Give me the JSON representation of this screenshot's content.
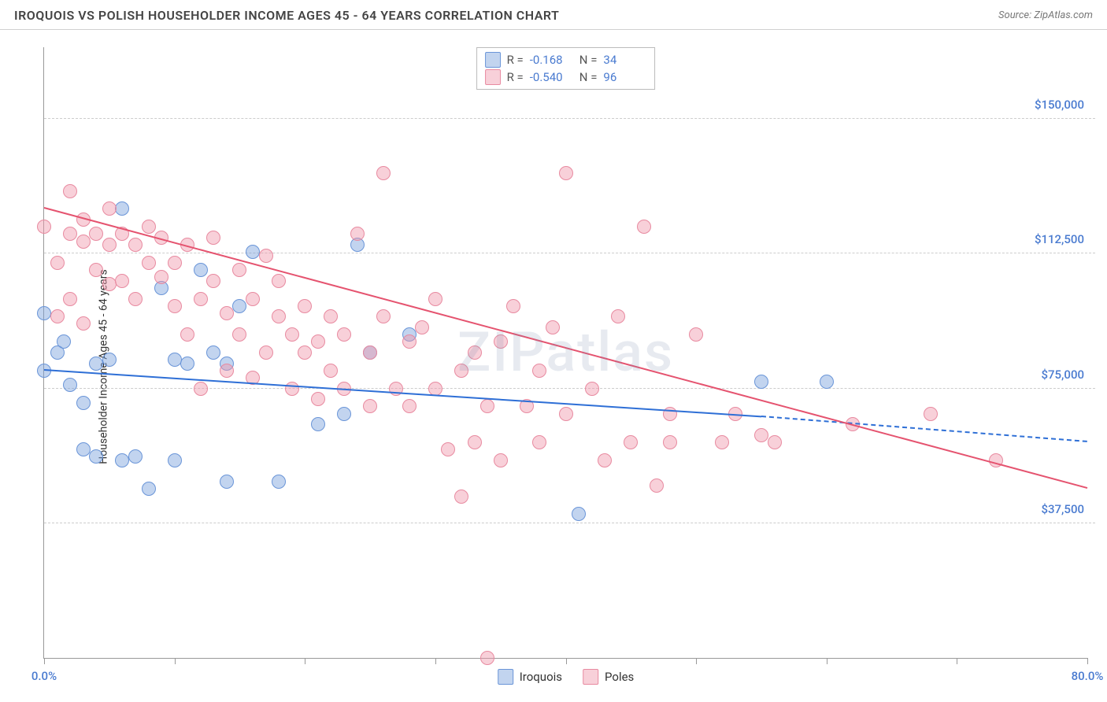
{
  "header": {
    "title": "IROQUOIS VS POLISH HOUSEHOLDER INCOME AGES 45 - 64 YEARS CORRELATION CHART",
    "source": "Source: ZipAtlas.com"
  },
  "watermark": "ZIPatlas",
  "chart": {
    "type": "scatter",
    "ylabel": "Householder Income Ages 45 - 64 years",
    "xlim": [
      0,
      80
    ],
    "ylim": [
      0,
      170000
    ],
    "yticks": [
      {
        "v": 37500,
        "label": "$37,500"
      },
      {
        "v": 75000,
        "label": "$75,000"
      },
      {
        "v": 112500,
        "label": "$112,500"
      },
      {
        "v": 150000,
        "label": "$150,000"
      }
    ],
    "xticks": [
      0,
      10,
      20,
      30,
      40,
      50,
      60,
      70,
      80
    ],
    "xaxis_labels": [
      {
        "v": 0,
        "label": "0.0%"
      },
      {
        "v": 80,
        "label": "80.0%"
      }
    ],
    "grid_color": "#cccccc",
    "axis_color": "#999999",
    "background_color": "#ffffff",
    "label_color": "#4a7bd0",
    "point_radius": 9,
    "point_opacity": 0.55,
    "series": [
      {
        "name": "Iroquois",
        "color_fill": "rgba(120,160,220,0.45)",
        "color_stroke": "#6a95d8",
        "trend_color": "#2e6fd6",
        "r": "-0.168",
        "n": "34",
        "trend": {
          "x1": 0,
          "y1": 80000,
          "x2": 55,
          "y2": 67000,
          "dash_to_x": 80,
          "dash_to_y": 60000
        },
        "points": [
          [
            0,
            96000
          ],
          [
            0,
            80000
          ],
          [
            1,
            85000
          ],
          [
            1.5,
            88000
          ],
          [
            2,
            76000
          ],
          [
            3,
            58000
          ],
          [
            3,
            71000
          ],
          [
            4,
            82000
          ],
          [
            4,
            56000
          ],
          [
            5,
            83000
          ],
          [
            6,
            125000
          ],
          [
            6,
            55000
          ],
          [
            7,
            56000
          ],
          [
            8,
            47000
          ],
          [
            9,
            103000
          ],
          [
            10,
            83000
          ],
          [
            10,
            55000
          ],
          [
            11,
            82000
          ],
          [
            12,
            108000
          ],
          [
            13,
            85000
          ],
          [
            14,
            49000
          ],
          [
            14,
            82000
          ],
          [
            15,
            98000
          ],
          [
            16,
            113000
          ],
          [
            18,
            49000
          ],
          [
            21,
            65000
          ],
          [
            23,
            68000
          ],
          [
            24,
            115000
          ],
          [
            25,
            85000
          ],
          [
            28,
            90000
          ],
          [
            41,
            40000
          ],
          [
            55,
            77000
          ],
          [
            60,
            77000
          ]
        ]
      },
      {
        "name": "Poles",
        "color_fill": "rgba(240,150,170,0.45)",
        "color_stroke": "#e88aa0",
        "trend_color": "#e5536f",
        "r": "-0.540",
        "n": "96",
        "trend": {
          "x1": 0,
          "y1": 125000,
          "x2": 80,
          "y2": 47000
        },
        "points": [
          [
            0,
            120000
          ],
          [
            1,
            110000
          ],
          [
            1,
            95000
          ],
          [
            2,
            118000
          ],
          [
            2,
            100000
          ],
          [
            2,
            130000
          ],
          [
            3,
            116000
          ],
          [
            3,
            122000
          ],
          [
            3,
            93000
          ],
          [
            4,
            108000
          ],
          [
            4,
            118000
          ],
          [
            5,
            115000
          ],
          [
            5,
            104000
          ],
          [
            5,
            125000
          ],
          [
            6,
            118000
          ],
          [
            6,
            105000
          ],
          [
            7,
            115000
          ],
          [
            7,
            100000
          ],
          [
            8,
            120000
          ],
          [
            8,
            110000
          ],
          [
            9,
            106000
          ],
          [
            9,
            117000
          ],
          [
            10,
            110000
          ],
          [
            10,
            98000
          ],
          [
            11,
            115000
          ],
          [
            11,
            90000
          ],
          [
            12,
            100000
          ],
          [
            12,
            75000
          ],
          [
            13,
            105000
          ],
          [
            13,
            117000
          ],
          [
            14,
            96000
          ],
          [
            14,
            80000
          ],
          [
            15,
            108000
          ],
          [
            15,
            90000
          ],
          [
            16,
            100000
          ],
          [
            16,
            78000
          ],
          [
            17,
            112000
          ],
          [
            17,
            85000
          ],
          [
            18,
            95000
          ],
          [
            18,
            105000
          ],
          [
            19,
            90000
          ],
          [
            19,
            75000
          ],
          [
            20,
            98000
          ],
          [
            20,
            85000
          ],
          [
            21,
            72000
          ],
          [
            21,
            88000
          ],
          [
            22,
            95000
          ],
          [
            22,
            80000
          ],
          [
            23,
            75000
          ],
          [
            23,
            90000
          ],
          [
            24,
            118000
          ],
          [
            25,
            70000
          ],
          [
            25,
            85000
          ],
          [
            26,
            95000
          ],
          [
            26,
            135000
          ],
          [
            27,
            75000
          ],
          [
            28,
            88000
          ],
          [
            28,
            70000
          ],
          [
            29,
            92000
          ],
          [
            30,
            75000
          ],
          [
            30,
            100000
          ],
          [
            31,
            58000
          ],
          [
            32,
            80000
          ],
          [
            32,
            45000
          ],
          [
            33,
            85000
          ],
          [
            33,
            60000
          ],
          [
            34,
            70000
          ],
          [
            34,
            0
          ],
          [
            35,
            55000
          ],
          [
            35,
            88000
          ],
          [
            36,
            98000
          ],
          [
            37,
            70000
          ],
          [
            38,
            60000
          ],
          [
            38,
            80000
          ],
          [
            39,
            92000
          ],
          [
            40,
            135000
          ],
          [
            40,
            68000
          ],
          [
            42,
            75000
          ],
          [
            43,
            55000
          ],
          [
            44,
            95000
          ],
          [
            45,
            60000
          ],
          [
            46,
            120000
          ],
          [
            47,
            48000
          ],
          [
            48,
            60000
          ],
          [
            48,
            68000
          ],
          [
            50,
            90000
          ],
          [
            52,
            60000
          ],
          [
            53,
            68000
          ],
          [
            55,
            62000
          ],
          [
            56,
            60000
          ],
          [
            62,
            65000
          ],
          [
            68,
            68000
          ],
          [
            73,
            55000
          ]
        ]
      }
    ],
    "legend": {
      "items": [
        "Iroquois",
        "Poles"
      ]
    }
  }
}
